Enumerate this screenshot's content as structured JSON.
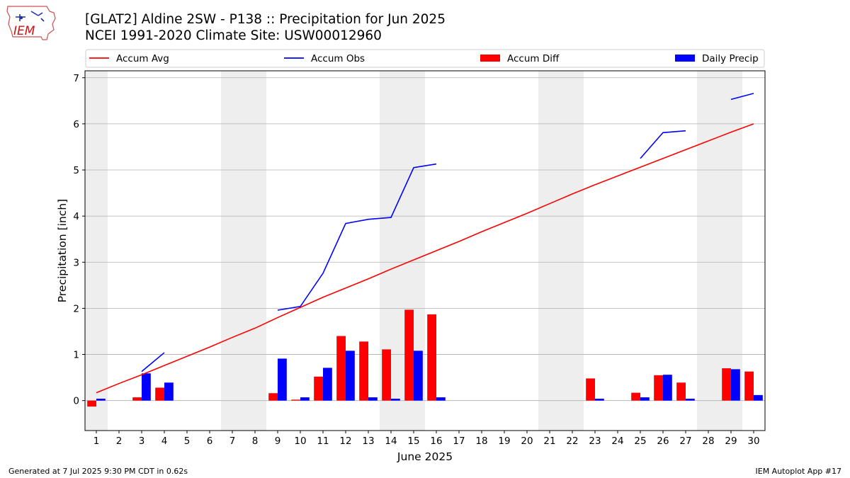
{
  "header": {
    "title_line1": "[GLAT2] Aldine 2SW - P138 :: Precipitation for Jun 2025",
    "title_line2": "NCEI 1991-2020 Climate Site: USW00012960",
    "logo_text": "IEM"
  },
  "footer": {
    "generated": "Generated at 7 Jul 2025 9:30 PM CDT in 0.62s",
    "app": "IEM Autoplot App #17"
  },
  "colors": {
    "avg": "#ff0000",
    "obs": "#0000ff",
    "diff": "#ff0000",
    "daily": "#0000ff",
    "weekend": "#eeeeee",
    "grid": "#b0b0b0"
  },
  "chart_data": {
    "type": "bar",
    "xlabel": "June 2025",
    "ylabel": "Precipitation [inch]",
    "xlim": [
      0.5,
      30.5
    ],
    "ylim": [
      -0.65,
      7.15
    ],
    "yticks": [
      0,
      1,
      2,
      3,
      4,
      5,
      6,
      7
    ],
    "x": [
      1,
      2,
      3,
      4,
      5,
      6,
      7,
      8,
      9,
      10,
      11,
      12,
      13,
      14,
      15,
      16,
      17,
      18,
      19,
      20,
      21,
      22,
      23,
      24,
      25,
      26,
      27,
      28,
      29,
      30
    ],
    "weekend_days": [
      1,
      7,
      8,
      14,
      15,
      21,
      22,
      28,
      29
    ],
    "grid": "horizontal",
    "legend": {
      "placement": "top",
      "entries": [
        {
          "label": "Accum Avg",
          "kind": "line",
          "color": "#ff0000"
        },
        {
          "label": "Accum Obs",
          "kind": "line",
          "color": "#0000ff"
        },
        {
          "label": "Accum Diff",
          "kind": "bar",
          "color": "#ff0000"
        },
        {
          "label": "Daily Precip",
          "kind": "bar",
          "color": "#0000ff"
        }
      ]
    },
    "series": [
      {
        "name": "Accum Avg",
        "type": "line",
        "values": [
          0.17,
          0.37,
          0.56,
          0.76,
          0.96,
          1.16,
          1.37,
          1.57,
          1.8,
          2.02,
          2.24,
          2.44,
          2.64,
          2.85,
          3.05,
          3.25,
          3.45,
          3.66,
          3.86,
          4.06,
          4.27,
          4.48,
          4.68,
          4.87,
          5.06,
          5.25,
          5.44,
          5.63,
          5.82,
          6.0
        ]
      },
      {
        "name": "Accum Obs",
        "type": "line",
        "values": [
          null,
          null,
          0.63,
          1.04,
          null,
          null,
          null,
          null,
          1.96,
          2.04,
          2.76,
          3.84,
          3.93,
          3.97,
          5.05,
          5.13,
          null,
          null,
          null,
          null,
          null,
          null,
          null,
          null,
          5.25,
          5.81,
          5.85,
          null,
          6.53,
          6.66
        ]
      },
      {
        "name": "Accum Diff",
        "type": "bar",
        "values": [
          -0.13,
          null,
          0.07,
          0.28,
          null,
          null,
          null,
          null,
          0.16,
          0.02,
          0.52,
          1.4,
          1.28,
          1.11,
          1.97,
          1.87,
          null,
          null,
          null,
          null,
          null,
          null,
          0.48,
          null,
          0.17,
          0.55,
          0.39,
          null,
          0.7,
          0.63
        ]
      },
      {
        "name": "Daily Precip",
        "type": "bar",
        "values": [
          0.04,
          null,
          0.59,
          0.39,
          null,
          null,
          null,
          null,
          0.91,
          0.07,
          0.71,
          1.08,
          0.07,
          0.04,
          1.08,
          0.07,
          null,
          null,
          null,
          null,
          null,
          null,
          0.04,
          null,
          0.07,
          0.56,
          0.04,
          null,
          0.68,
          0.12
        ]
      }
    ]
  }
}
